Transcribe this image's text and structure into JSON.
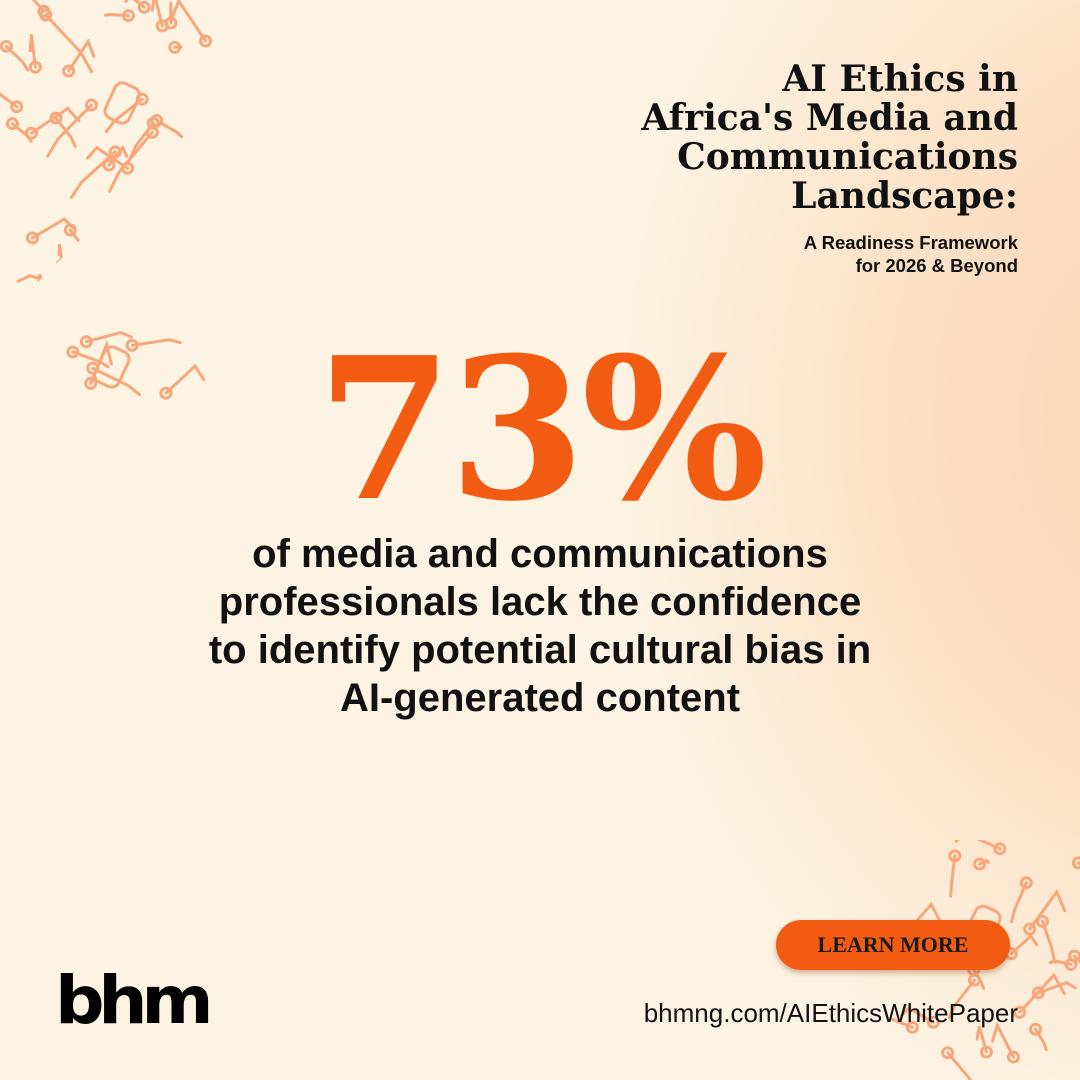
{
  "header": {
    "title_lines": [
      "AI Ethics in",
      "Africa's Media and",
      "Communications",
      "Landscape:"
    ],
    "subtitle_lines": [
      "A Readiness Framework",
      "for 2026 & Beyond"
    ]
  },
  "stat": {
    "value": "73%",
    "description_lines": [
      "of media and communications",
      "professionals lack the confidence",
      "to identify potential cultural bias in",
      "AI-generated content"
    ]
  },
  "cta": {
    "label": "LEARN MORE"
  },
  "footer": {
    "url": "bhmng.com/AIEthicsWhitePaper",
    "logo_text": "bhm"
  },
  "colors": {
    "accent": "#f25c12",
    "background": "#fdf3e2",
    "circuit": "#f6a87c",
    "text": "#111111"
  },
  "decorations": {
    "icon": "circuit-board-pattern"
  }
}
